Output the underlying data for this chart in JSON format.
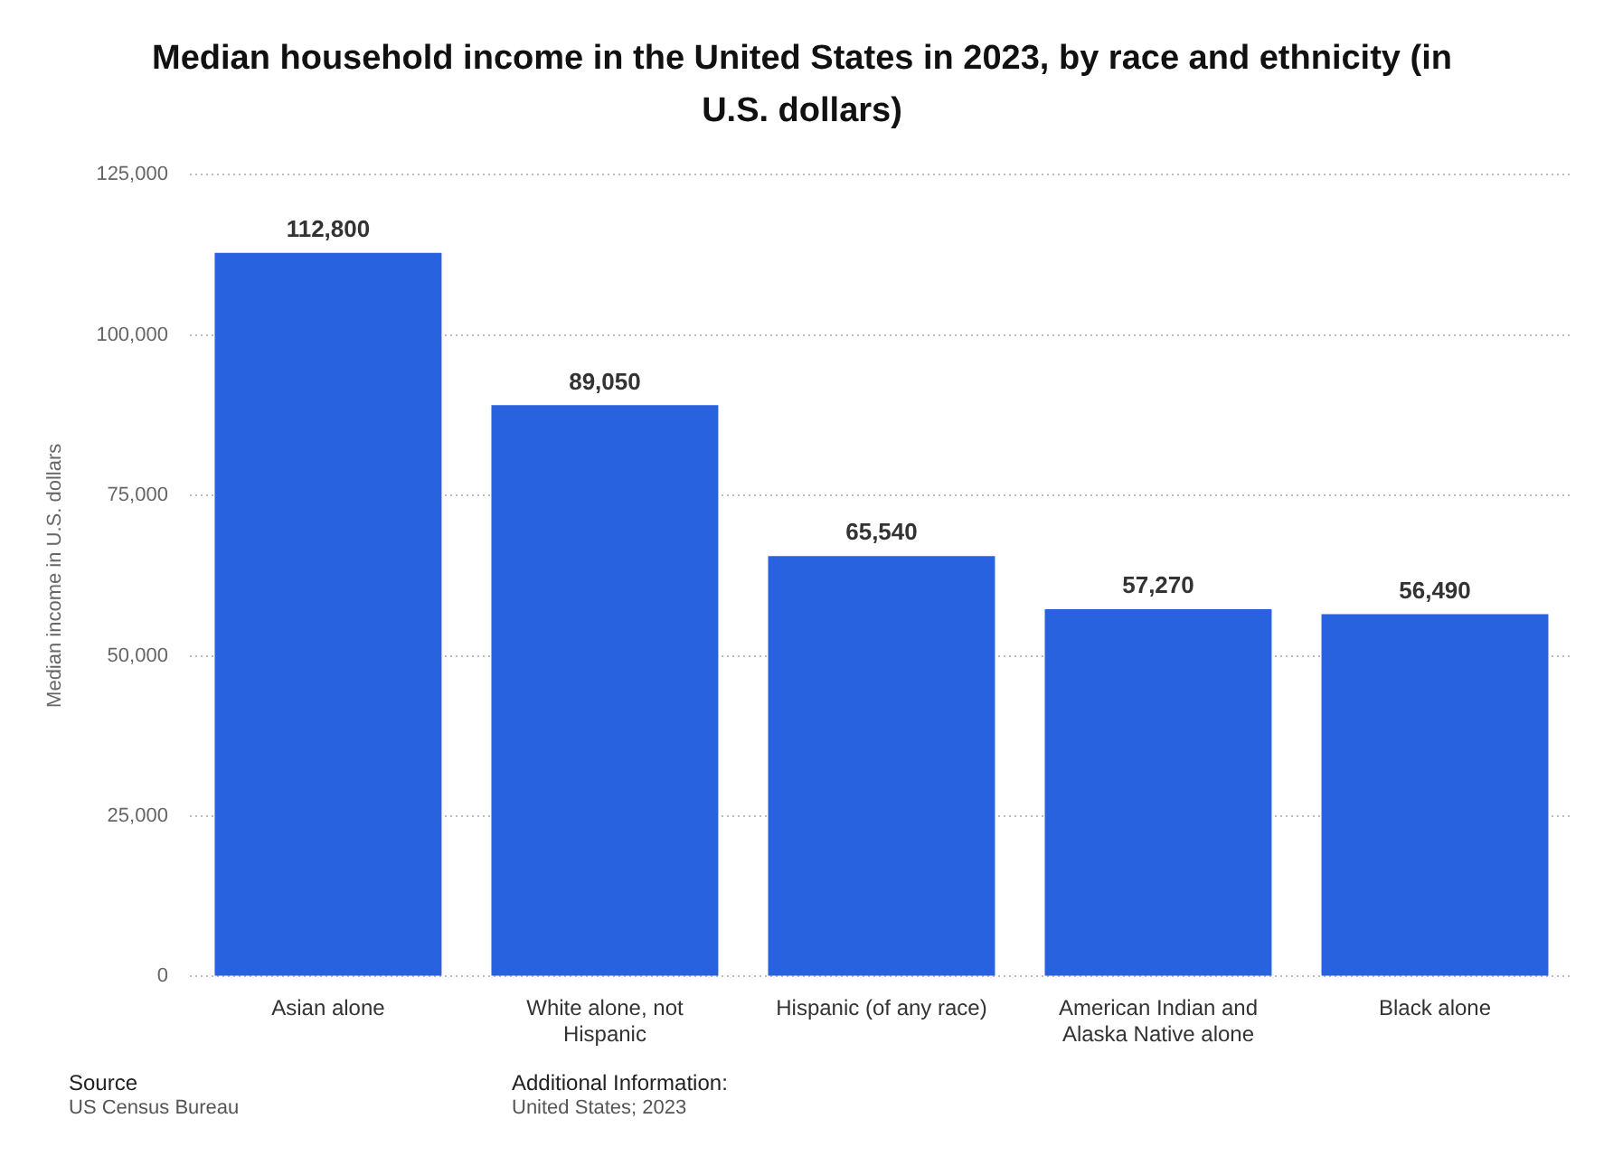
{
  "chart_data": {
    "type": "bar",
    "title": "Median household income in the United States in 2023, by race and ethnicity (in U.S. dollars)",
    "ylabel": "Median income in U.S. dollars",
    "categories": [
      "Asian alone",
      "White alone, not Hispanic",
      "Hispanic (of any race)",
      "American Indian and Alaska Native alone",
      "Black alone"
    ],
    "values": [
      112800,
      89050,
      65540,
      57270,
      56490
    ],
    "color": "#2962de",
    "value_labels": [
      "112,800",
      "89,050",
      "65,540",
      "57,270",
      "56,490"
    ],
    "ylim": [
      0,
      125000
    ],
    "yticks": [
      0,
      {
        "value": 25000,
        "label": "25,000"
      },
      {
        "value": 50000,
        "label": "50,000"
      },
      {
        "value": 75000,
        "label": "75,000"
      },
      {
        "value": 100000,
        "label": "100,000"
      },
      {
        "value": 125000,
        "label": "125,000"
      }
    ],
    "grid": "y",
    "legend": false,
    "annotations": [
      "Source",
      "US Census Bureau",
      "Additional Information:",
      "United States; 2023"
    ]
  }
}
